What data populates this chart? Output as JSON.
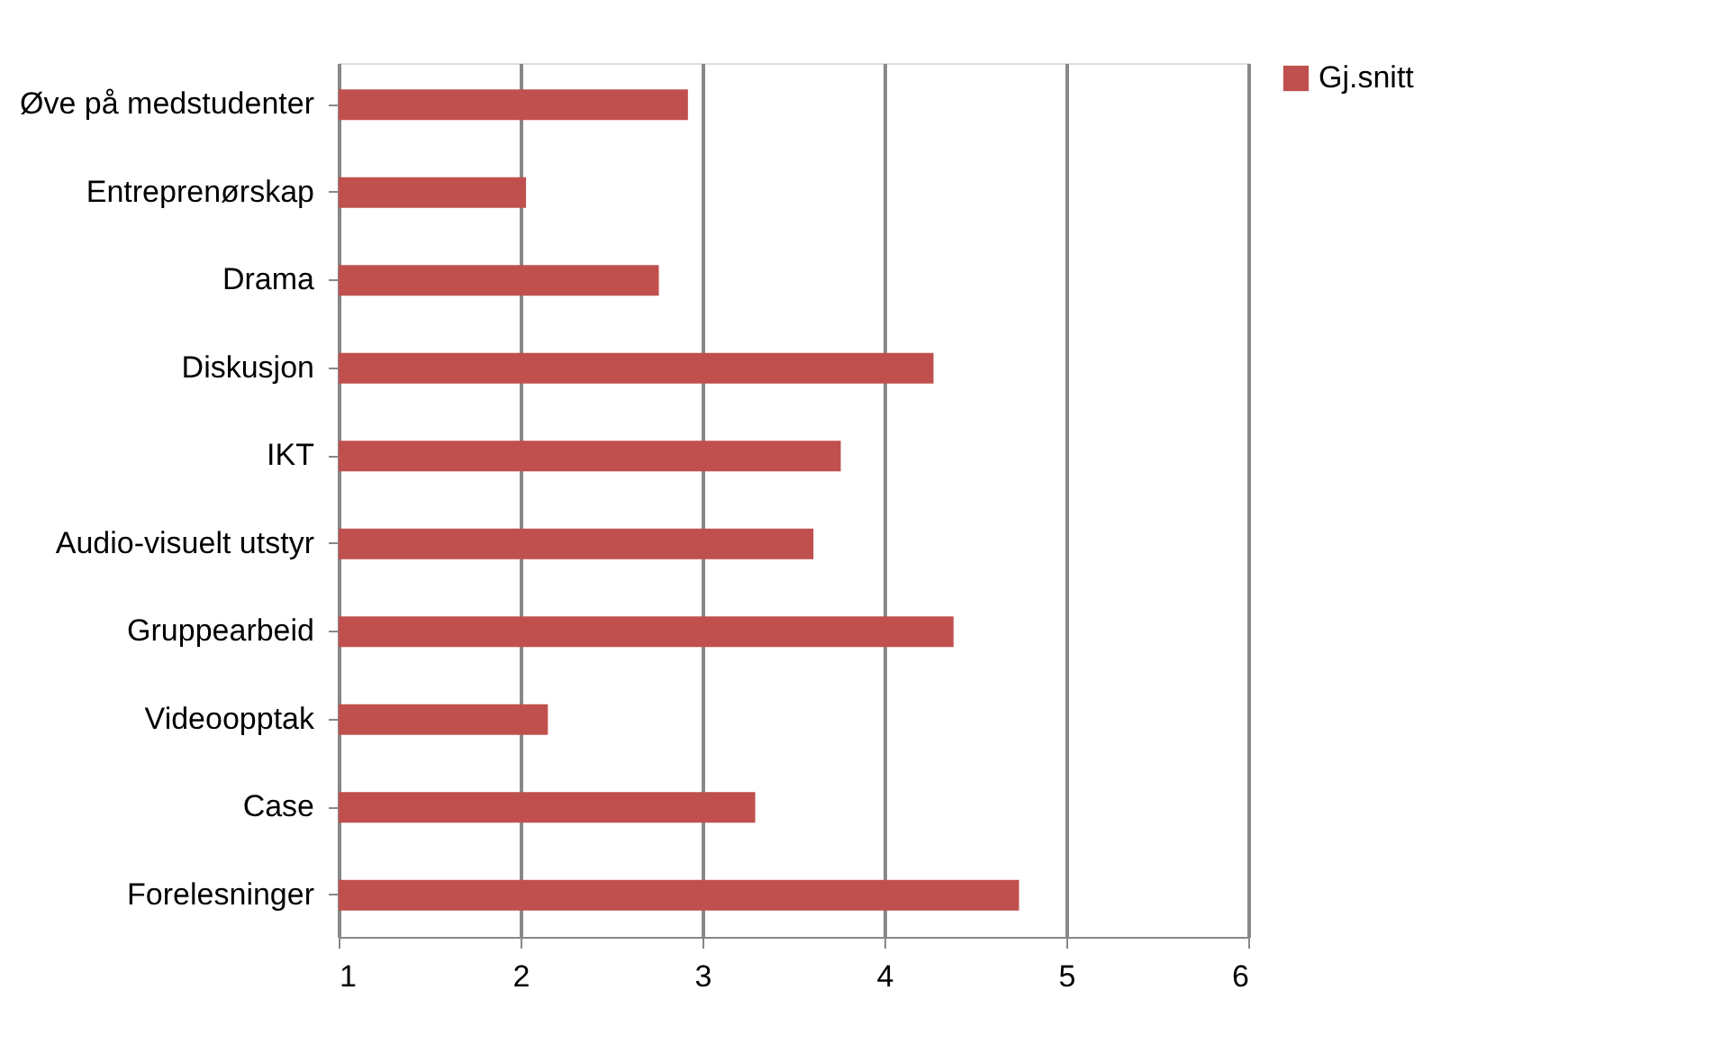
{
  "chart_data": {
    "type": "bar",
    "orientation": "horizontal",
    "categories": [
      "Øve på medstudenter",
      "Entreprenørskap",
      "Drama",
      "Diskusjon",
      "IKT",
      "Audio-visuelt utstyr",
      "Gruppearbeid",
      "Videoopptak",
      "Case",
      "Forelesninger"
    ],
    "series": [
      {
        "name": "Gj.snitt",
        "color": "#c0504d",
        "values": [
          2.92,
          2.03,
          2.76,
          4.27,
          3.76,
          3.61,
          4.38,
          2.15,
          3.29,
          4.74
        ]
      }
    ],
    "xlim": [
      1,
      6
    ],
    "xticks": [
      1,
      2,
      3,
      4,
      5,
      6
    ],
    "grid": "x",
    "legend": "right"
  }
}
